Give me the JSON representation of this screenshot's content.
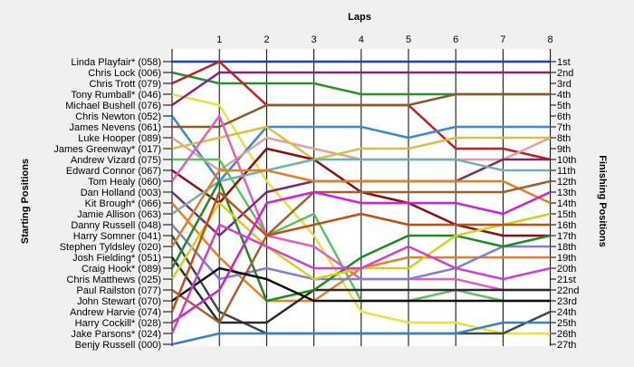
{
  "chart_data": {
    "type": "line",
    "title": "",
    "xlabel": "Laps",
    "ylabel_left": "Starting Positions",
    "ylabel_right": "Finishing Positions",
    "x_ticks": [
      "1",
      "2",
      "3",
      "4",
      "5",
      "6",
      "7",
      "8"
    ],
    "grid": "vertical",
    "starting_labels": [
      "Linda Playfair* (058)",
      "Chris Lock (006)",
      "Chris Trott (079)",
      "Tony Rumball* (046)",
      "Michael Bushell (076)",
      "Chris Newton (052)",
      "James Nevens (061)",
      "Luke Hooper (089)",
      "James Greenway* (017)",
      "Andrew Vizard (075)",
      "Edward Connor (067)",
      "Tom Healy (060)",
      "Dan Holland (003)",
      "Kit Brough* (066)",
      "Jamie Allison (063)",
      "Danny Russell (048)",
      "Harry Somner (041)",
      "Stephen Tyldsley (020)",
      "Josh Fielding* (051)",
      "Craig Hook* (089)",
      "Chris Matthews (025)",
      "Paul Railston (077)",
      "John Stewart (070)",
      "Andrew Harvie (074)",
      "Harry Cockill* (028)",
      "Jake Parsons* (024)",
      "Benjy Russell (000)"
    ],
    "finishing_labels": [
      "1st",
      "2nd",
      "3rd",
      "4th",
      "5th",
      "6th",
      "7th",
      "8th",
      "9th",
      "10th",
      "11th",
      "12th",
      "13th",
      "14th",
      "15th",
      "16th",
      "17th",
      "18th",
      "19th",
      "20th",
      "21st",
      "22nd",
      "23rd",
      "24th",
      "25th",
      "26th",
      "27th"
    ],
    "series": [
      {
        "color": "#1f3fbf",
        "positions": [
          1,
          1,
          1,
          1,
          1,
          1,
          1,
          1,
          1
        ]
      },
      {
        "color": "#2a8f2a",
        "positions": [
          2,
          3,
          3,
          3,
          4,
          4,
          4,
          4,
          4
        ]
      },
      {
        "color": "#c02020",
        "positions": [
          3,
          1,
          5,
          5,
          5,
          5,
          9,
          9,
          10
        ]
      },
      {
        "color": "#e8e040",
        "positions": [
          4,
          5,
          12,
          17,
          24,
          25,
          25,
          26,
          26
        ]
      },
      {
        "color": "#8a2080",
        "positions": [
          5,
          2,
          2,
          2,
          2,
          2,
          2,
          2,
          2
        ]
      },
      {
        "color": "#3a8ad0",
        "positions": [
          6,
          12,
          7,
          7,
          7,
          8,
          7,
          7,
          7
        ]
      },
      {
        "color": "#8a5a2a",
        "positions": [
          7,
          7,
          5,
          5,
          5,
          5,
          4,
          4,
          4
        ]
      },
      {
        "color": "#e0a0a0",
        "positions": [
          8,
          11,
          8,
          9,
          10,
          10,
          10,
          10,
          8
        ]
      },
      {
        "color": "#d8c040",
        "positions": [
          9,
          8,
          7,
          10,
          9,
          9,
          8,
          8,
          8
        ]
      },
      {
        "color": "#60c060",
        "positions": [
          10,
          10,
          17,
          15,
          23,
          23,
          22,
          23,
          23
        ]
      },
      {
        "color": "#8a1010",
        "positions": [
          11,
          14,
          9,
          10,
          13,
          14,
          16,
          17,
          17
        ]
      },
      {
        "color": "#e060c0",
        "positions": [
          12,
          6,
          17,
          18,
          21,
          21,
          21,
          22,
          22
        ]
      },
      {
        "color": "#7a2a70",
        "positions": [
          13,
          17,
          13,
          12,
          12,
          12,
          12,
          10,
          10
        ]
      },
      {
        "color": "#e08030",
        "positions": [
          14,
          19,
          23,
          23,
          20,
          19,
          19,
          19,
          19
        ]
      },
      {
        "color": "#70b0b0",
        "positions": [
          15,
          12,
          11,
          10,
          10,
          10,
          10,
          11,
          11
        ]
      },
      {
        "color": "#8080d0",
        "positions": [
          16,
          21,
          20,
          21,
          21,
          21,
          20,
          18,
          18
        ]
      },
      {
        "color": "#3a4a4a",
        "positions": [
          17,
          24,
          26,
          26,
          26,
          26,
          26,
          26,
          24
        ]
      },
      {
        "color": "#e08020",
        "positions": [
          18,
          11,
          11,
          12,
          12,
          12,
          12,
          12,
          14
        ]
      },
      {
        "color": "#2a2a2a",
        "positions": [
          19,
          25,
          25,
          22,
          22,
          22,
          22,
          22,
          22
        ]
      },
      {
        "color": "#208a20",
        "positions": [
          20,
          12,
          23,
          22,
          19,
          17,
          17,
          18,
          17
        ]
      },
      {
        "color": "#d0d020",
        "positions": [
          21,
          14,
          18,
          21,
          20,
          20,
          17,
          16,
          15
        ]
      },
      {
        "color": "#a06030",
        "positions": [
          22,
          25,
          17,
          13,
          13,
          13,
          13,
          13,
          12
        ]
      },
      {
        "color": "#101010",
        "positions": [
          23,
          20,
          21,
          23,
          23,
          23,
          23,
          23,
          23
        ]
      },
      {
        "color": "#c05010",
        "positions": [
          24,
          13,
          17,
          16,
          15,
          16,
          16,
          16,
          16
        ]
      },
      {
        "color": "#d020d0",
        "positions": [
          25,
          22,
          14,
          13,
          14,
          14,
          14,
          15,
          13
        ]
      },
      {
        "color": "#d040d0",
        "positions": [
          26,
          16,
          18,
          20,
          20,
          18,
          20,
          21,
          20
        ]
      },
      {
        "color": "#3a80c0",
        "positions": [
          27,
          26,
          26,
          26,
          26,
          26,
          26,
          25,
          25
        ]
      }
    ]
  }
}
